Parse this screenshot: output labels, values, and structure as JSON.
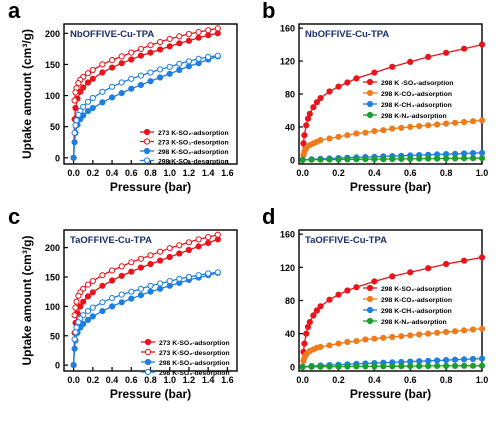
{
  "figure": {
    "panel_count": 4
  },
  "chart_data": [
    {
      "type": "scatter",
      "panel_label": "a",
      "title": "NbOFFIVE-Cu-TPA",
      "xlabel": "Pressure (bar)",
      "ylabel": "Uptake amount (cm³/g)",
      "xlim": [
        -0.1,
        1.7
      ],
      "ylim": [
        -10,
        215
      ],
      "xticks": [
        "0.0",
        "0.2",
        "0.4",
        "0.6",
        "0.8",
        "1.0",
        "1.2",
        "1.4",
        "1.6"
      ],
      "yticks": [
        "0",
        "50",
        "100",
        "150",
        "200"
      ],
      "legend_position": "bottom-right",
      "series": [
        {
          "name": "273 K-SO₂-adsorption",
          "color": "#e8141c",
          "marker": "filled-circle",
          "x": [
            0.0,
            0.01,
            0.02,
            0.04,
            0.07,
            0.1,
            0.15,
            0.2,
            0.3,
            0.4,
            0.5,
            0.6,
            0.7,
            0.8,
            0.9,
            1.0,
            1.1,
            1.2,
            1.3,
            1.4,
            1.5
          ],
          "y": [
            0,
            62,
            80,
            95,
            106,
            113,
            121,
            127,
            137,
            145,
            152,
            158,
            164,
            169,
            174,
            179,
            184,
            188,
            193,
            197,
            200
          ]
        },
        {
          "name": "273 K-SO₂-desorption",
          "color": "#e8141c",
          "marker": "open-circle",
          "x": [
            1.5,
            1.4,
            1.3,
            1.2,
            1.1,
            1.0,
            0.9,
            0.8,
            0.7,
            0.6,
            0.5,
            0.4,
            0.3,
            0.2,
            0.15,
            0.1,
            0.07,
            0.05,
            0.03,
            0.02,
            0.01
          ],
          "y": [
            208,
            205,
            202,
            199,
            195,
            191,
            186,
            181,
            175,
            169,
            163,
            157,
            150,
            141,
            136,
            130,
            125,
            120,
            112,
            105,
            92
          ]
        },
        {
          "name": "298 K-SO₂-adsorption",
          "color": "#1e7fe0",
          "marker": "filled-circle",
          "x": [
            0.0,
            0.01,
            0.02,
            0.04,
            0.07,
            0.1,
            0.15,
            0.2,
            0.3,
            0.4,
            0.5,
            0.6,
            0.7,
            0.8,
            0.9,
            1.0,
            1.1,
            1.2,
            1.3,
            1.4,
            1.5
          ],
          "y": [
            0,
            25,
            40,
            53,
            62,
            68,
            75,
            80,
            89,
            97,
            104,
            111,
            117,
            123,
            129,
            135,
            141,
            147,
            152,
            158,
            163
          ]
        },
        {
          "name": "298 K-SO₂-desorption",
          "color": "#1e7fe0",
          "marker": "open-circle",
          "x": [
            1.5,
            1.4,
            1.3,
            1.2,
            1.1,
            1.0,
            0.9,
            0.8,
            0.7,
            0.6,
            0.5,
            0.4,
            0.3,
            0.2,
            0.15,
            0.1,
            0.07,
            0.05,
            0.03,
            0.02,
            0.01
          ],
          "y": [
            164,
            162,
            159,
            155,
            151,
            146,
            142,
            137,
            132,
            127,
            121,
            114,
            106,
            96,
            90,
            82,
            75,
            69,
            60,
            52,
            40
          ]
        }
      ]
    },
    {
      "type": "scatter",
      "panel_label": "b",
      "title": "NbOFFIVE-Cu-TPA",
      "xlabel": "Pressure (bar)",
      "ylabel": "",
      "xlim": [
        -0.02,
        1.0
      ],
      "ylim": [
        -5,
        165
      ],
      "xticks": [
        "0.0",
        "0.2",
        "0.4",
        "0.6",
        "0.8",
        "1.0"
      ],
      "yticks": [
        "0",
        "40",
        "80",
        "120",
        "160"
      ],
      "legend_position": "center-right",
      "series": [
        {
          "name": "298 K -SO₂-adsorption",
          "color": "#e8141c",
          "marker": "filled-circle",
          "x": [
            0.0,
            0.005,
            0.01,
            0.02,
            0.03,
            0.04,
            0.06,
            0.08,
            0.1,
            0.15,
            0.2,
            0.25,
            0.3,
            0.4,
            0.5,
            0.6,
            0.7,
            0.8,
            0.9,
            1.0
          ],
          "y": [
            0,
            20,
            30,
            42,
            50,
            56,
            64,
            70,
            75,
            83,
            89,
            94,
            99,
            106,
            113,
            119,
            125,
            130,
            135,
            140
          ]
        },
        {
          "name": "298 K-CO₂-adsorption",
          "color": "#f07b1a",
          "marker": "filled-circle",
          "x": [
            0.0,
            0.005,
            0.01,
            0.02,
            0.04,
            0.06,
            0.08,
            0.1,
            0.15,
            0.2,
            0.25,
            0.3,
            0.35,
            0.4,
            0.45,
            0.5,
            0.55,
            0.6,
            0.65,
            0.7,
            0.75,
            0.8,
            0.85,
            0.9,
            0.95,
            1.0
          ],
          "y": [
            0,
            6,
            10,
            14,
            18,
            20,
            22,
            24,
            26,
            28,
            30,
            32,
            33,
            35,
            36,
            38,
            39,
            40,
            41,
            42,
            43,
            44,
            45,
            46,
            47,
            48
          ]
        },
        {
          "name": "298 K-CH₄-adsorption",
          "color": "#1e7fe0",
          "marker": "filled-circle",
          "x": [
            0.0,
            0.05,
            0.1,
            0.15,
            0.2,
            0.25,
            0.3,
            0.35,
            0.4,
            0.45,
            0.5,
            0.55,
            0.6,
            0.65,
            0.7,
            0.75,
            0.8,
            0.85,
            0.9,
            0.95,
            1.0
          ],
          "y": [
            0,
            0.7,
            1.2,
            1.7,
            2.2,
            2.6,
            3.0,
            3.4,
            3.8,
            4.2,
            4.6,
            5.0,
            5.4,
            5.8,
            6.2,
            6.6,
            7.0,
            7.4,
            7.8,
            8.2,
            8.6
          ]
        },
        {
          "name": "298 K-N₂-adsorption",
          "color": "#1c9e2a",
          "marker": "filled-circle",
          "x": [
            0.0,
            0.05,
            0.1,
            0.15,
            0.2,
            0.25,
            0.3,
            0.35,
            0.4,
            0.45,
            0.5,
            0.55,
            0.6,
            0.65,
            0.7,
            0.75,
            0.8,
            0.85,
            0.9,
            0.95,
            1.0
          ],
          "y": [
            0,
            0.2,
            0.3,
            0.4,
            0.5,
            0.6,
            0.7,
            0.8,
            0.9,
            1.0,
            1.1,
            1.2,
            1.3,
            1.4,
            1.5,
            1.6,
            1.7,
            1.8,
            1.9,
            2.0,
            2.1
          ]
        }
      ]
    },
    {
      "type": "scatter",
      "panel_label": "c",
      "title": "TaOFFIVE-Cu-TPA",
      "xlabel": "Pressure (bar)",
      "ylabel": "Uptake amount (cm³/g)",
      "xlim": [
        -0.1,
        1.7
      ],
      "ylim": [
        -10,
        230
      ],
      "xticks": [
        "0.0",
        "0.2",
        "0.4",
        "0.6",
        "0.8",
        "1.0",
        "1.2",
        "1.4",
        "1.6"
      ],
      "yticks": [
        "0",
        "50",
        "100",
        "150",
        "200"
      ],
      "legend_position": "bottom-right",
      "series": [
        {
          "name": "273 K-SO₂-adsorption",
          "color": "#e8141c",
          "marker": "filled-circle",
          "x": [
            0.0,
            0.01,
            0.02,
            0.04,
            0.07,
            0.1,
            0.15,
            0.2,
            0.3,
            0.4,
            0.5,
            0.6,
            0.7,
            0.8,
            0.9,
            1.0,
            1.1,
            1.2,
            1.3,
            1.4,
            1.5
          ],
          "y": [
            0,
            55,
            72,
            88,
            100,
            108,
            117,
            124,
            135,
            144,
            152,
            159,
            166,
            172,
            178,
            184,
            190,
            196,
            202,
            208,
            214
          ]
        },
        {
          "name": "273 K-SO₂-desorption",
          "color": "#e8141c",
          "marker": "open-circle",
          "x": [
            1.5,
            1.4,
            1.3,
            1.2,
            1.1,
            1.0,
            0.9,
            0.8,
            0.7,
            0.6,
            0.5,
            0.4,
            0.3,
            0.2,
            0.15,
            0.1,
            0.07,
            0.05,
            0.03,
            0.02,
            0.01
          ],
          "y": [
            222,
            218,
            214,
            209,
            204,
            199,
            193,
            187,
            181,
            175,
            168,
            161,
            153,
            143,
            137,
            130,
            124,
            118,
            108,
            98,
            85
          ]
        },
        {
          "name": "298 K-SO₂-adsorption",
          "color": "#1e7fe0",
          "marker": "filled-circle",
          "x": [
            0.0,
            0.01,
            0.02,
            0.04,
            0.07,
            0.1,
            0.15,
            0.2,
            0.3,
            0.4,
            0.5,
            0.6,
            0.7,
            0.8,
            0.9,
            1.0,
            1.1,
            1.2,
            1.3,
            1.4,
            1.5
          ],
          "y": [
            0,
            28,
            42,
            55,
            64,
            70,
            77,
            83,
            92,
            100,
            107,
            113,
            119,
            125,
            130,
            135,
            140,
            145,
            149,
            153,
            157
          ]
        },
        {
          "name": "298 K-SO₂-desorption",
          "color": "#1e7fe0",
          "marker": "open-circle",
          "x": [
            1.5,
            1.4,
            1.3,
            1.2,
            1.1,
            1.0,
            0.9,
            0.8,
            0.7,
            0.6,
            0.5,
            0.4,
            0.3,
            0.2,
            0.15,
            0.1,
            0.07,
            0.05,
            0.03,
            0.02,
            0.01
          ],
          "y": [
            158,
            156,
            153,
            150,
            147,
            143,
            139,
            135,
            130,
            125,
            120,
            114,
            107,
            98,
            92,
            85,
            79,
            73,
            64,
            56,
            44
          ]
        }
      ]
    },
    {
      "type": "scatter",
      "panel_label": "d",
      "title": "TaOFFIVE-Cu-TPA",
      "xlabel": "Pressure (bar)",
      "ylabel": "",
      "xlim": [
        -0.02,
        1.0
      ],
      "ylim": [
        -5,
        165
      ],
      "xticks": [
        "0.0",
        "0.2",
        "0.4",
        "0.6",
        "0.8",
        "1.0"
      ],
      "yticks": [
        "0",
        "40",
        "80",
        "120",
        "160"
      ],
      "legend_position": "center-right",
      "series": [
        {
          "name": "298 K-SO₂-adsorption",
          "color": "#e8141c",
          "marker": "filled-circle",
          "x": [
            0.0,
            0.005,
            0.01,
            0.02,
            0.03,
            0.04,
            0.06,
            0.08,
            0.1,
            0.15,
            0.2,
            0.25,
            0.3,
            0.4,
            0.5,
            0.6,
            0.7,
            0.8,
            0.9,
            1.0
          ],
          "y": [
            0,
            18,
            28,
            40,
            48,
            54,
            62,
            68,
            73,
            81,
            87,
            92,
            96,
            103,
            109,
            114,
            119,
            124,
            128,
            132
          ]
        },
        {
          "name": "298 K-CO₂-adsorption",
          "color": "#f07b1a",
          "marker": "filled-circle",
          "x": [
            0.0,
            0.005,
            0.01,
            0.02,
            0.04,
            0.06,
            0.08,
            0.1,
            0.15,
            0.2,
            0.25,
            0.3,
            0.35,
            0.4,
            0.45,
            0.5,
            0.55,
            0.6,
            0.65,
            0.7,
            0.75,
            0.8,
            0.85,
            0.9,
            0.95,
            1.0
          ],
          "y": [
            0,
            7,
            11,
            15,
            19,
            21,
            23,
            24,
            26,
            28,
            30,
            31,
            33,
            34,
            35,
            36,
            37,
            38,
            39,
            40,
            41,
            42,
            43,
            44,
            45,
            46
          ]
        },
        {
          "name": "298 K-CH₄-adsorption",
          "color": "#1e7fe0",
          "marker": "filled-circle",
          "x": [
            0.0,
            0.05,
            0.1,
            0.15,
            0.2,
            0.25,
            0.3,
            0.35,
            0.4,
            0.45,
            0.5,
            0.55,
            0.6,
            0.65,
            0.7,
            0.75,
            0.8,
            0.85,
            0.9,
            0.95,
            1.0
          ],
          "y": [
            0,
            1.0,
            1.6,
            2.1,
            2.6,
            3.1,
            3.6,
            4.0,
            4.5,
            5.0,
            5.4,
            5.9,
            6.3,
            6.8,
            7.2,
            7.7,
            8.1,
            8.6,
            9.0,
            9.5,
            9.9
          ]
        },
        {
          "name": "298 K-N₂-adsorption",
          "color": "#1c9e2a",
          "marker": "filled-circle",
          "x": [
            0.0,
            0.05,
            0.1,
            0.15,
            0.2,
            0.25,
            0.3,
            0.35,
            0.4,
            0.45,
            0.5,
            0.55,
            0.6,
            0.65,
            0.7,
            0.75,
            0.8,
            0.85,
            0.9,
            0.95,
            1.0
          ],
          "y": [
            0,
            0.1,
            0.2,
            0.3,
            0.3,
            0.4,
            0.5,
            0.5,
            0.6,
            0.7,
            0.7,
            0.8,
            0.9,
            0.9,
            1.0,
            1.1,
            1.1,
            1.2,
            1.3,
            1.3,
            1.4
          ]
        }
      ]
    }
  ]
}
